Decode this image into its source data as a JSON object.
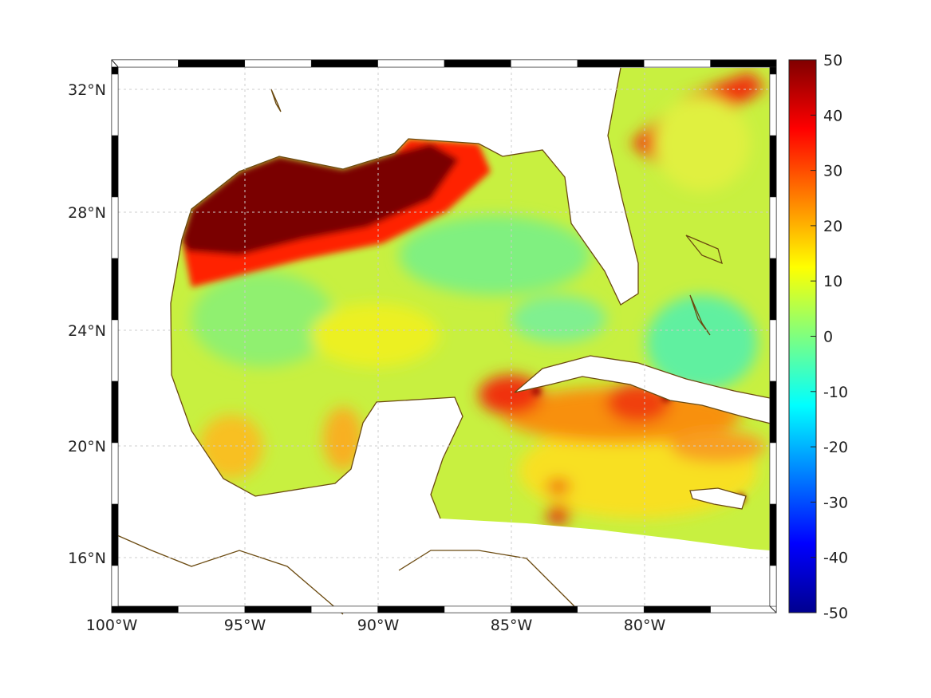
{
  "map": {
    "lat_ticks": [
      {
        "label": "32°N",
        "lat": 32
      },
      {
        "label": "28°N",
        "lat": 28
      },
      {
        "label": "24°N",
        "lat": 24
      },
      {
        "label": "20°N",
        "lat": 20
      },
      {
        "label": "16°N",
        "lat": 16
      }
    ],
    "lon_ticks": [
      {
        "label": "100°W",
        "lon": -100
      },
      {
        "label": "95°W",
        "lon": -95
      },
      {
        "label": "90°W",
        "lon": -90
      },
      {
        "label": "85°W",
        "lon": -85
      },
      {
        "label": "80°W",
        "lon": -80
      }
    ],
    "coast_color": "#6b4a10"
  },
  "colorbar": {
    "ticks": [
      "50",
      "40",
      "30",
      "20",
      "10",
      "0",
      "-10",
      "-20",
      "-30",
      "-40",
      "-50"
    ],
    "min": -50,
    "max": 50,
    "colormap": "jet"
  }
}
